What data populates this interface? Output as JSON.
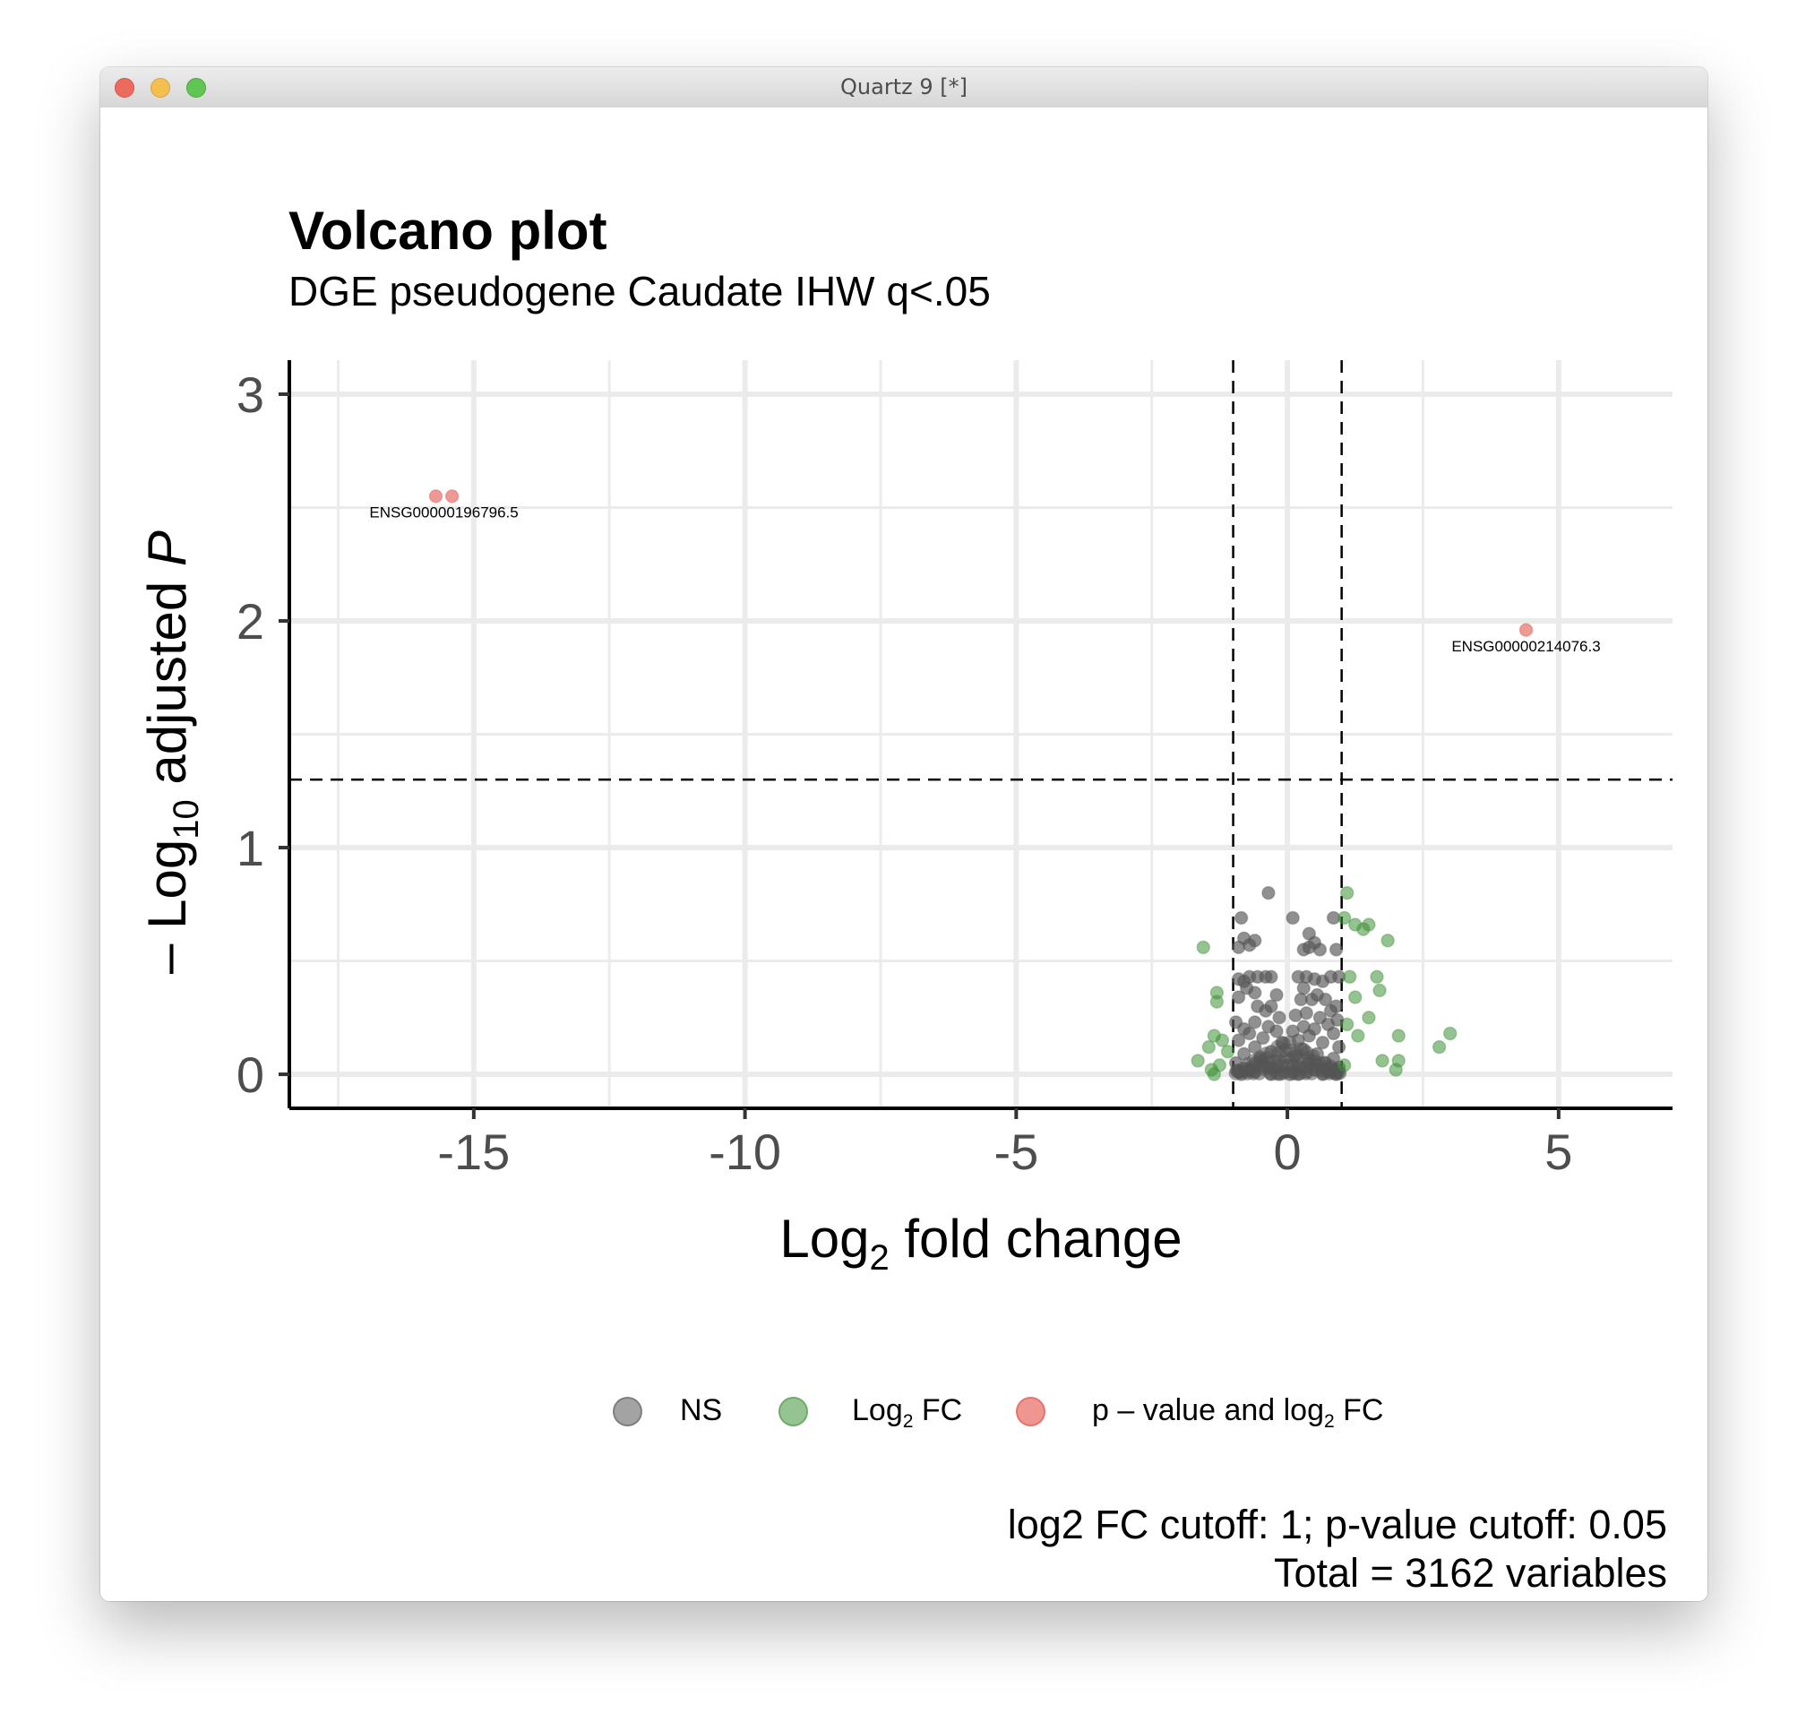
{
  "window": {
    "title": "Quartz 9 [*]",
    "buttons": [
      "close",
      "minimize",
      "zoom"
    ]
  },
  "plot": {
    "title": "Volcano plot",
    "subtitle": "DGE pseudogene Caudate IHW q<.05",
    "caption_line1": "log2 FC cutoff: 1; p-value cutoff: 0.05",
    "caption_line2": "Total = 3162 variables",
    "legend": [
      {
        "label": "NS",
        "color": "#7f7f7f"
      },
      {
        "label_main": "Log",
        "label_sub": "2",
        "label_rest": " FC",
        "color": "#6aaa64"
      },
      {
        "label_main": "p – value and log",
        "label_sub": "2",
        "label_rest": " FC",
        "color": "#e8736b"
      }
    ]
  },
  "chart_data": {
    "type": "scatter",
    "title": "Volcano plot",
    "subtitle": "DGE pseudogene Caudate IHW q<.05",
    "xlabel": {
      "main": "Log",
      "sub": "2",
      "rest": " fold change"
    },
    "ylabel": {
      "prefix": "– Log",
      "sub": "10",
      "middle": " adjusted ",
      "italic": "P"
    },
    "xlim": [
      -18.4,
      7.1
    ],
    "ylim": [
      -0.15,
      3.15
    ],
    "xticks": [
      -15,
      -10,
      -5,
      0,
      5
    ],
    "xtick_labels": [
      "-15",
      "-10",
      "-5",
      "0",
      "5"
    ],
    "yticks": [
      0,
      1,
      2,
      3
    ],
    "ytick_labels": [
      "0",
      "1",
      "2",
      "3"
    ],
    "x_minor_grid": [
      -17.5,
      -12.5,
      -7.5,
      -2.5,
      2.5
    ],
    "y_minor_grid": [
      0.5,
      1.5,
      2.5
    ],
    "grid": true,
    "cutoff_lines": {
      "vertical": [
        -1,
        1
      ],
      "horizontal": 1.3
    },
    "colors": {
      "NS": "#555555",
      "FC": "#3d8f35",
      "sig": "#e0473c"
    },
    "series": [
      {
        "name": "NS",
        "points": [
          [
            -0.35,
            0.8
          ],
          [
            0.1,
            0.69
          ],
          [
            0.85,
            0.69
          ],
          [
            -0.85,
            0.69
          ],
          [
            0.4,
            0.62
          ],
          [
            0.5,
            0.58
          ],
          [
            -0.6,
            0.59
          ],
          [
            -0.8,
            0.6
          ],
          [
            -0.9,
            0.56
          ],
          [
            -0.7,
            0.57
          ],
          [
            0.3,
            0.55
          ],
          [
            0.6,
            0.55
          ],
          [
            0.9,
            0.55
          ],
          [
            0.4,
            0.56
          ],
          [
            -0.7,
            0.43
          ],
          [
            -0.55,
            0.43
          ],
          [
            -0.4,
            0.43
          ],
          [
            -0.3,
            0.43
          ],
          [
            -0.9,
            0.42
          ],
          [
            -0.8,
            0.41
          ],
          [
            0.2,
            0.43
          ],
          [
            0.35,
            0.43
          ],
          [
            0.5,
            0.42
          ],
          [
            0.8,
            0.43
          ],
          [
            0.95,
            0.43
          ],
          [
            0.65,
            0.41
          ],
          [
            0.3,
            0.38
          ],
          [
            -0.75,
            0.38
          ],
          [
            -0.6,
            0.36
          ],
          [
            -0.9,
            0.34
          ],
          [
            -0.2,
            0.35
          ],
          [
            0.25,
            0.33
          ],
          [
            0.45,
            0.33
          ],
          [
            0.7,
            0.33
          ],
          [
            0.55,
            0.35
          ],
          [
            0.9,
            0.3
          ],
          [
            0.8,
            0.28
          ],
          [
            -0.55,
            0.3
          ],
          [
            -0.4,
            0.28
          ],
          [
            -0.3,
            0.3
          ],
          [
            0.35,
            0.27
          ],
          [
            0.15,
            0.26
          ],
          [
            -0.15,
            0.25
          ],
          [
            0.6,
            0.25
          ],
          [
            0.92,
            0.24
          ],
          [
            -0.95,
            0.23
          ],
          [
            -0.6,
            0.23
          ],
          [
            -0.35,
            0.21
          ],
          [
            0.3,
            0.21
          ],
          [
            0.75,
            0.22
          ],
          [
            -0.8,
            0.2
          ],
          [
            0.5,
            0.2
          ],
          [
            0.1,
            0.19
          ],
          [
            -0.2,
            0.19
          ],
          [
            -0.7,
            0.18
          ],
          [
            0.85,
            0.18
          ],
          [
            0.4,
            0.17
          ],
          [
            -0.45,
            0.16
          ],
          [
            -0.9,
            0.15
          ],
          [
            0.2,
            0.15
          ],
          [
            0.65,
            0.14
          ],
          [
            -0.1,
            0.14
          ],
          [
            0.95,
            0.12
          ],
          [
            -0.6,
            0.12
          ],
          [
            0.3,
            0.11
          ],
          [
            -0.3,
            0.1
          ],
          [
            0.55,
            0.09
          ],
          [
            -0.8,
            0.09
          ],
          [
            0.15,
            0.08
          ],
          [
            0.85,
            0.07
          ],
          [
            -0.5,
            0.07
          ],
          [
            -0.15,
            0.06
          ],
          [
            0.4,
            0.06
          ],
          [
            -0.95,
            0.05
          ],
          [
            0.7,
            0.05
          ],
          [
            0.0,
            0.04
          ],
          [
            -0.4,
            0.03
          ],
          [
            0.25,
            0.03
          ],
          [
            0.95,
            0.03
          ],
          [
            -0.7,
            0.02
          ],
          [
            0.5,
            0.02
          ],
          [
            -0.25,
            0.02
          ],
          [
            0.1,
            0.01
          ],
          [
            0.8,
            0.01
          ],
          [
            -0.05,
            0.01
          ],
          [
            0.35,
            0.01
          ],
          [
            -0.6,
            0.01
          ],
          [
            0.65,
            0.0
          ],
          [
            -0.3,
            0.0
          ],
          [
            0.05,
            0.0
          ],
          [
            -0.85,
            0.0
          ],
          [
            0.9,
            0.0
          ],
          [
            0.2,
            0.0
          ],
          [
            -0.15,
            0.0
          ]
        ]
      },
      {
        "name": "Log2 FC",
        "points": [
          [
            1.1,
            0.8
          ],
          [
            1.05,
            0.69
          ],
          [
            1.25,
            0.66
          ],
          [
            1.4,
            0.64
          ],
          [
            1.5,
            0.66
          ],
          [
            1.85,
            0.59
          ],
          [
            -1.55,
            0.56
          ],
          [
            1.15,
            0.43
          ],
          [
            1.65,
            0.43
          ],
          [
            -1.3,
            0.36
          ],
          [
            1.25,
            0.34
          ],
          [
            1.7,
            0.37
          ],
          [
            -1.3,
            0.32
          ],
          [
            1.5,
            0.25
          ],
          [
            1.1,
            0.22
          ],
          [
            -1.35,
            0.17
          ],
          [
            -1.2,
            0.15
          ],
          [
            2.05,
            0.17
          ],
          [
            3.0,
            0.18
          ],
          [
            1.3,
            0.17
          ],
          [
            -1.45,
            0.12
          ],
          [
            -1.1,
            0.1
          ],
          [
            2.8,
            0.12
          ],
          [
            -1.65,
            0.06
          ],
          [
            1.75,
            0.06
          ],
          [
            2.05,
            0.06
          ],
          [
            -1.25,
            0.04
          ],
          [
            1.05,
            0.04
          ],
          [
            -1.4,
            0.02
          ],
          [
            2.0,
            0.02
          ],
          [
            -1.35,
            0.0
          ]
        ]
      },
      {
        "name": "p – value and log2 FC",
        "points": [
          [
            -15.7,
            2.55
          ],
          [
            -15.4,
            2.55
          ],
          [
            4.4,
            1.96
          ]
        ]
      }
    ],
    "annotations": [
      {
        "text": "ENSG00000196796.5",
        "x": -15.55,
        "y": 2.48
      },
      {
        "text": "ENSG00000214076.3",
        "x": 4.4,
        "y": 1.89
      }
    ],
    "legend_position": "bottom"
  }
}
